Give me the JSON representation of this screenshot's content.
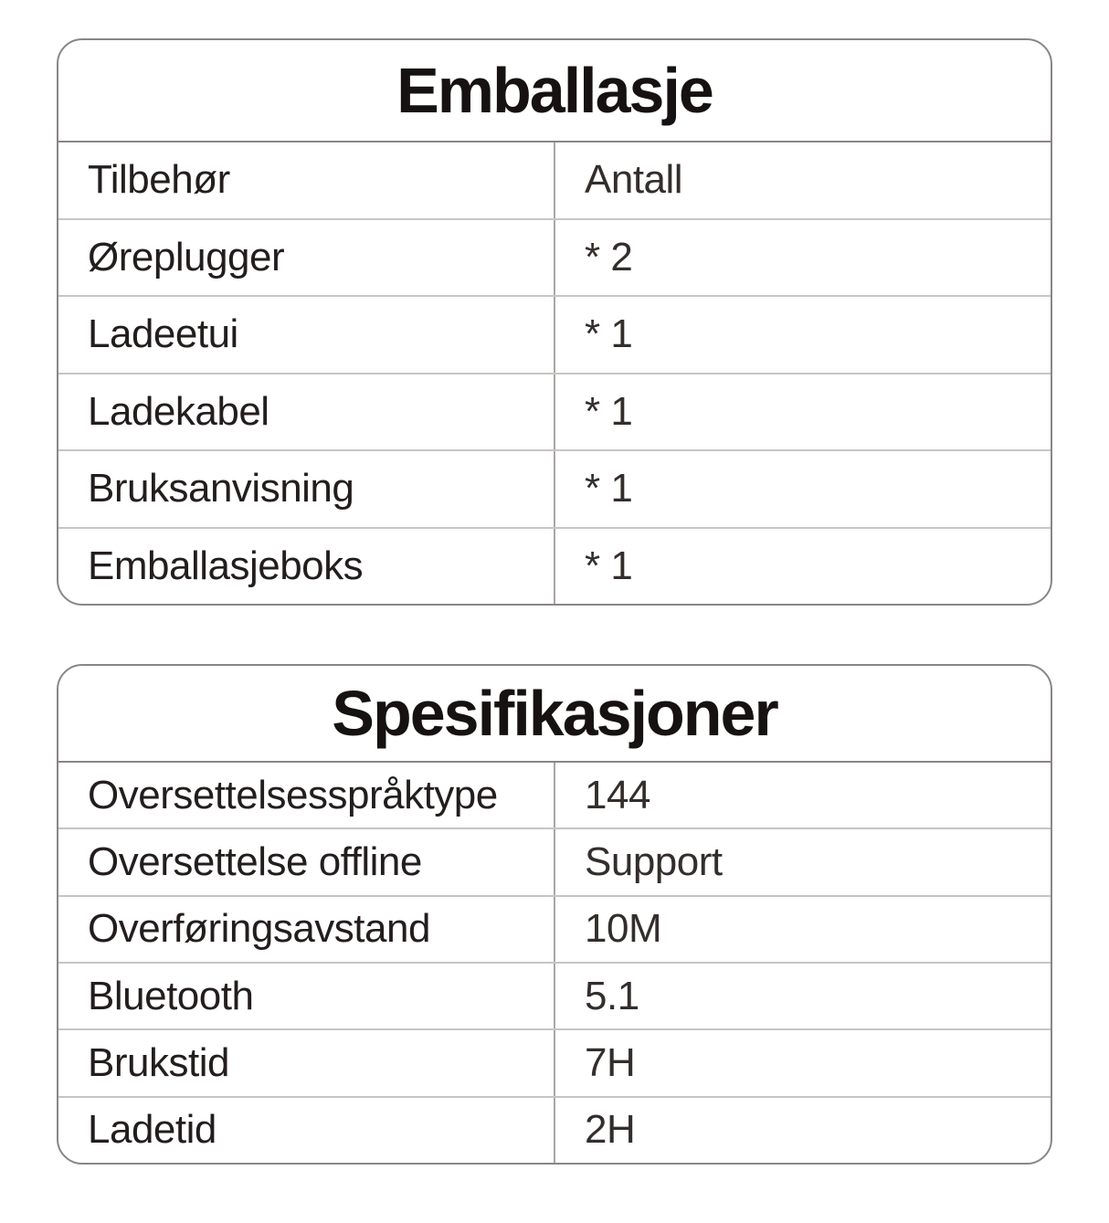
{
  "colors": {
    "outer_border": "#8a8685",
    "row_separator": "#c7c5c4",
    "column_divider": "#a9a6a5",
    "title_text": "#171212",
    "body_text": "#231e1d",
    "background": "#ffffff"
  },
  "tables": [
    {
      "title": "Emballasje",
      "rows": [
        {
          "label": "Tilbehør",
          "value": "Antall"
        },
        {
          "label": "Øreplugger",
          "value": "* 2"
        },
        {
          "label": "Ladeetui",
          "value": "* 1"
        },
        {
          "label": "Ladekabel",
          "value": "* 1"
        },
        {
          "label": "Bruksanvisning",
          "value": "* 1"
        },
        {
          "label": "Emballasjeboks",
          "value": "* 1"
        }
      ]
    },
    {
      "title": "Spesifikasjoner",
      "rows": [
        {
          "label": "Oversettelsesspråktype",
          "value": "144"
        },
        {
          "label": "Oversettelse offline",
          "value": "Support"
        },
        {
          "label": "Overføringsavstand",
          "value": "10M"
        },
        {
          "label": "Bluetooth",
          "value": "5.1"
        },
        {
          "label": "Brukstid",
          "value": "7H"
        },
        {
          "label": "Ladetid",
          "value": "2H"
        }
      ]
    }
  ]
}
